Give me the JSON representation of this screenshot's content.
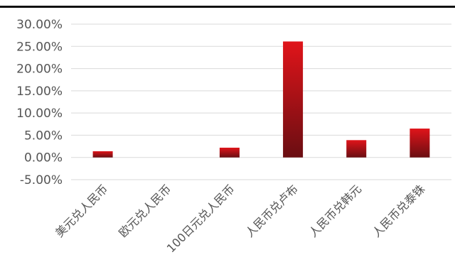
{
  "chart_data": {
    "type": "bar",
    "categories": [
      "美元兑人民币",
      "欧元兑人民币",
      "100日元兑人民币",
      "人民币兑卢布",
      "人民币兑韩元",
      "人民币兑泰铢"
    ],
    "values": [
      1.4,
      0.0,
      2.2,
      26.1,
      3.9,
      6.5
    ],
    "ylim": [
      -5,
      30
    ],
    "y_ticks": [
      -5,
      0,
      5,
      10,
      15,
      20,
      25,
      30
    ],
    "y_tick_labels": [
      "-5.00%",
      "0.00%",
      "5.00%",
      "10.00%",
      "15.00%",
      "20.00%",
      "25.00%",
      "30.00%"
    ],
    "grid": true,
    "legend": "none",
    "colors": {
      "bar_top": "#e0141a",
      "bar_bottom": "#6a0e12",
      "grid": "#d9d9d9",
      "text": "#555555",
      "top_rule": "#111111"
    }
  }
}
